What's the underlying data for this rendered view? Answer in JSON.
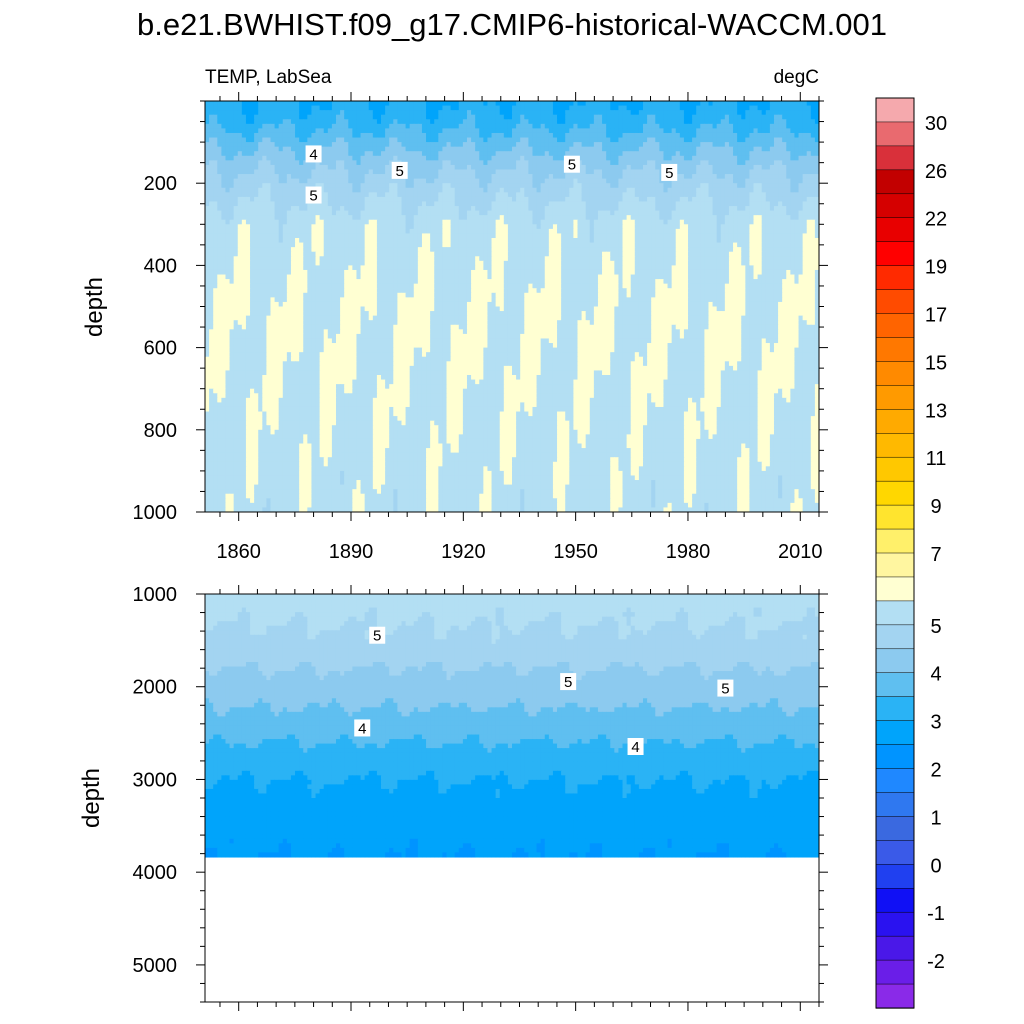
{
  "title": "b.e21.BWHIST.f09_g17.CMIP6-historical-WACCM.001",
  "chart_data": [
    {
      "type": "heatmap",
      "panel": "upper",
      "left_label": "TEMP, LabSea",
      "right_label": "degC",
      "xlabel": "",
      "ylabel": "depth",
      "xlim": [
        1851,
        2015
      ],
      "ylim": [
        1000,
        0
      ],
      "xticks": [
        1860,
        1890,
        1920,
        1950,
        1980,
        2010
      ],
      "yticks": [
        200,
        400,
        600,
        800,
        1000
      ],
      "contour_labels": [
        {
          "value": "4",
          "x": 1880,
          "y": 130
        },
        {
          "value": "5",
          "x": 1880,
          "y": 230
        },
        {
          "value": "5",
          "x": 1903,
          "y": 170
        },
        {
          "value": "5",
          "x": 1949,
          "y": 155
        },
        {
          "value": "5",
          "x": 1975,
          "y": 175
        }
      ],
      "profile": {
        "depth": [
          0,
          50,
          100,
          150,
          200,
          250,
          300,
          400,
          500,
          600,
          800,
          1000
        ],
        "temp": [
          3.5,
          3.8,
          4.3,
          4.8,
          5.2,
          5.5,
          5.8,
          5.9,
          6.0,
          6.0,
          5.9,
          5.8
        ]
      }
    },
    {
      "type": "heatmap",
      "panel": "lower",
      "xlabel": "",
      "ylabel": "depth",
      "xlim": [
        1851,
        2015
      ],
      "ylim": [
        5400,
        1000
      ],
      "yticks": [
        1000,
        2000,
        3000,
        4000,
        5000
      ],
      "bottom_depth": 3850,
      "contour_labels": [
        {
          "value": "5",
          "x": 1897,
          "y": 1450
        },
        {
          "value": "5",
          "x": 1948,
          "y": 1950
        },
        {
          "value": "5",
          "x": 1990,
          "y": 2020
        },
        {
          "value": "4",
          "x": 1893,
          "y": 2450
        },
        {
          "value": "4",
          "x": 1966,
          "y": 2650
        }
      ],
      "profile": {
        "depth": [
          1000,
          1500,
          1800,
          2000,
          2300,
          2600,
          3000,
          3500,
          3850
        ],
        "temp": [
          5.7,
          5.4,
          5.0,
          4.8,
          4.4,
          4.0,
          3.5,
          3.2,
          3.0
        ]
      }
    }
  ],
  "colorbar": {
    "levels": [
      -2.5,
      -2,
      -1.5,
      -1,
      -0.5,
      0,
      0.5,
      1,
      1.5,
      2,
      2.5,
      3,
      3.5,
      4,
      4.5,
      5,
      5.5,
      6,
      7,
      8,
      9,
      10,
      11,
      12,
      13,
      14,
      15,
      16,
      17,
      18,
      19,
      20,
      22,
      24,
      26,
      28,
      30,
      32
    ],
    "colors": [
      "#f5a9ad",
      "#e96a6f",
      "#d9303a",
      "#c20000",
      "#d50000",
      "#e80000",
      "#ff0000",
      "#ff2a00",
      "#ff4b00",
      "#ff6400",
      "#ff7800",
      "#ff8a00",
      "#ff9a00",
      "#ffaa00",
      "#ffb900",
      "#ffc800",
      "#ffd700",
      "#ffe42e",
      "#fff06a",
      "#fff6a0",
      "#ffffd2",
      "#b3dff3",
      "#a3d4f1",
      "#8ccaef",
      "#5fbff0",
      "#2ab3f5",
      "#00a4fb",
      "#0094ff",
      "#1f88ff",
      "#2f78f0",
      "#3a69e0",
      "#3a5ae8",
      "#2040f0",
      "#1010f5",
      "#2a12f0",
      "#4a18e8",
      "#6a1ee8",
      "#8a2ae8"
    ],
    "tick_labels": [
      "30",
      "26",
      "22",
      "19",
      "17",
      "15",
      "13",
      "11",
      "9",
      "7",
      "5",
      "4",
      "3",
      "2",
      "1",
      "0",
      "-1",
      "-2"
    ]
  }
}
